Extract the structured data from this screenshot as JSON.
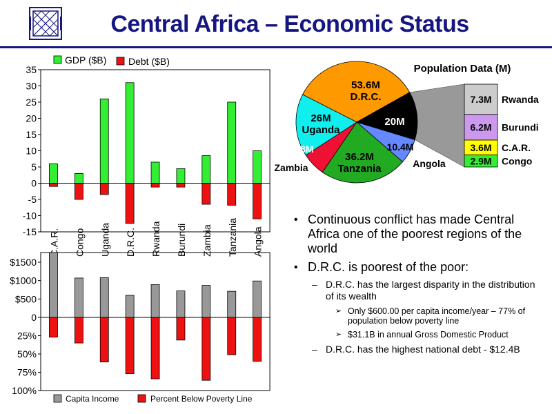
{
  "title": "Central Africa – Economic Status",
  "colors": {
    "title": "#161680",
    "gdp": "#33ee33",
    "debt": "#ee1111",
    "income": "#999999",
    "poverty": "#ee1111"
  },
  "chart_data": [
    {
      "type": "bar",
      "categories": [
        "C.A.R.",
        "Congo",
        "Uganda",
        "D.R.C.",
        "Rwanda",
        "Burundi",
        "Zambia",
        "Tanzania",
        "Angola"
      ],
      "series": [
        {
          "name": "GDP ($B)",
          "values": [
            6,
            3,
            26,
            31,
            6.5,
            4.5,
            8.5,
            25,
            10
          ]
        },
        {
          "name": "Debt ($B)",
          "values": [
            -1,
            -5,
            -3.5,
            -12.4,
            -1.2,
            -1.2,
            -6.5,
            -6.8,
            -11
          ]
        }
      ],
      "ylim": [
        -15,
        35
      ],
      "yticks": [
        "-15",
        "-10",
        "-5",
        "0",
        "5",
        "10",
        "15",
        "20",
        "25",
        "30",
        "35"
      ],
      "legend": "top-left"
    },
    {
      "type": "bar",
      "categories": [
        "C.A.R.",
        "Congo",
        "Uganda",
        "D.R.C.",
        "Rwanda",
        "Burundi",
        "Zambia",
        "Tanzania",
        "Angola"
      ],
      "series": [
        {
          "name": "Capita Income",
          "values": [
            1800,
            1070,
            1080,
            600,
            890,
            720,
            870,
            710,
            990
          ]
        },
        {
          "name": "Percent Below Poverty Line",
          "values": [
            27,
            35,
            61,
            77,
            84,
            31,
            86,
            51,
            60
          ]
        }
      ],
      "yticks_top": [
        "0",
        "$500",
        "$1000",
        "$1500"
      ],
      "yticks_bottom": [
        "25%",
        "50%",
        "75%",
        "100%"
      ],
      "legend": "bottom"
    },
    {
      "type": "pie",
      "title": "Population Data (M)",
      "slices": [
        {
          "label": "D.R.C.",
          "value": "53.6M",
          "amount": 53.6,
          "color": "#ff9900",
          "label_inside": true
        },
        {
          "label": "",
          "value": "20M",
          "amount": 20,
          "color": "#000000",
          "label_inside": true
        },
        {
          "label": "Angola",
          "value": "10.4M",
          "amount": 10.4,
          "color": "#6688ff",
          "label_inside": false
        },
        {
          "label": "Tanzania",
          "value": "36.2M",
          "amount": 36.2,
          "color": "#22aa22",
          "label_inside": true
        },
        {
          "label": "Zambia",
          "value": "9.8M",
          "amount": 9.8,
          "color": "#ee1133",
          "label_inside": false
        },
        {
          "label": "Uganda",
          "value": "26M",
          "amount": 26,
          "color": "#11eeee",
          "label_inside": true
        }
      ],
      "breakout": [
        {
          "label": "Rwanda",
          "value": "7.3M",
          "amount": 7.3,
          "color": "#cccccc"
        },
        {
          "label": "Burundi",
          "value": "6.2M",
          "amount": 6.2,
          "color": "#cc99ee"
        },
        {
          "label": "C.A.R.",
          "value": "3.6M",
          "amount": 3.6,
          "color": "#ffff00"
        },
        {
          "label": "Congo",
          "value": "2.9M",
          "amount": 2.9,
          "color": "#33ee33"
        }
      ]
    }
  ],
  "bullets": [
    {
      "text": "Continuous conflict has made Central Africa one of the poorest regions of the world",
      "children": []
    },
    {
      "text": "D.R.C. is poorest of the poor:",
      "children": [
        {
          "text": "D.R.C. has the largest disparity in the distribution of its wealth",
          "children": [
            "Only $600.00 per capita income/year – 77% of population below poverty line",
            "$31.1B in annual Gross Domestic Product"
          ]
        },
        {
          "text": "D.R.C. has the highest national debt - $12.4B",
          "children": []
        }
      ]
    }
  ]
}
